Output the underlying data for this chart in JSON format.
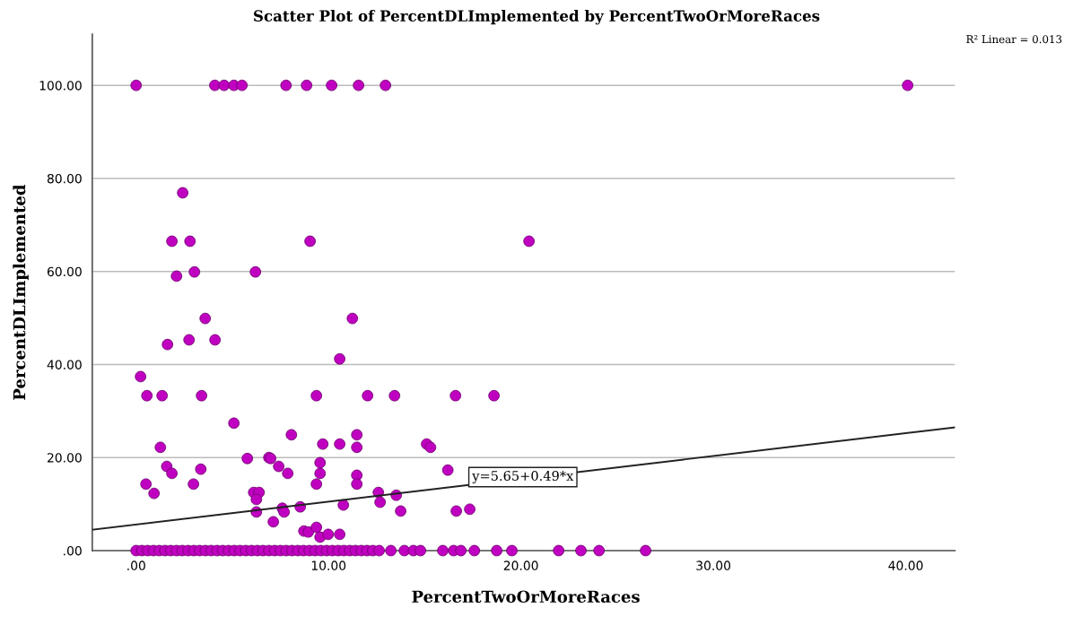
{
  "chart_data": {
    "type": "scatter",
    "title": "Scatter Plot of PercentDLImplemented by PercentTwoOrMoreRaces",
    "xlabel": "PercentTwoOrMoreRaces",
    "ylabel": "PercentDLImplemented",
    "annotations": [
      "R² Linear = 0.013",
      {
        "text": "y=5.65+0.49*x",
        "x": 20.1,
        "y": 15.8
      }
    ],
    "xlim": [
      -2.28,
      42.56
    ],
    "ylim": [
      0,
      111
    ],
    "xticks": [
      {
        "value": 0,
        "label": ".00"
      },
      {
        "value": 10,
        "label": "10.00"
      },
      {
        "value": 20,
        "label": "20.00"
      },
      {
        "value": 30,
        "label": "30.00"
      },
      {
        "value": 40,
        "label": "40.00"
      }
    ],
    "yticks": [
      {
        "value": 0,
        "label": ".00"
      },
      {
        "value": 20,
        "label": "20.00"
      },
      {
        "value": 40,
        "label": "40.00"
      },
      {
        "value": 60,
        "label": "60.00"
      },
      {
        "value": 80,
        "label": "80.00"
      },
      {
        "value": 100,
        "label": "100.00"
      }
    ],
    "grid": "y",
    "marker": "circle",
    "legend": false,
    "series": [
      {
        "color": "#c000c0",
        "x": [
          0,
          4.09,
          4.57,
          5.08,
          5.5,
          7.79,
          8.86,
          10.16,
          11.56,
          12.96,
          40.1,
          2.42,
          1.86,
          2.8,
          9.04,
          20.42,
          2.1,
          3.03,
          6.2,
          3.59,
          11.24,
          1.63,
          2.75,
          4.1,
          0.23,
          10.58,
          0.56,
          1.35,
          3.4,
          9.37,
          12.03,
          13.43,
          16.6,
          18.6,
          5.08,
          8.07,
          11.47,
          1.26,
          9.7,
          10.58,
          11.47,
          15.1,
          15.3,
          5.78,
          6.9,
          6.99,
          7.41,
          7.88,
          9.56,
          9.56,
          1.59,
          1.86,
          3.36,
          16.2,
          0.51,
          2.98,
          9.37,
          11.47,
          11.47,
          0.93,
          6.11,
          6.39,
          12.59,
          6.25,
          12.68,
          13.52,
          10.77,
          6.25,
          7.6,
          7.69,
          8.53,
          13.75,
          16.64,
          17.34,
          7.13,
          8.72,
          8.95,
          9.37,
          9.56,
          9.98,
          10.58,
          0,
          0.3,
          0.6,
          0.9,
          1.2,
          1.5,
          1.8,
          2.1,
          2.4,
          2.7,
          3.0,
          3.3,
          3.6,
          3.9,
          4.2,
          4.5,
          4.8,
          5.1,
          5.4,
          5.7,
          6.0,
          6.3,
          6.6,
          6.9,
          7.2,
          7.5,
          7.8,
          8.1,
          8.4,
          8.7,
          9.0,
          9.3,
          9.6,
          9.9,
          10.2,
          10.5,
          10.8,
          11.1,
          11.4,
          11.7,
          12.0,
          12.3,
          12.63,
          13.24,
          13.94,
          14.41,
          14.78,
          15.94,
          16.5,
          16.88,
          17.58,
          18.74,
          19.53,
          21.96,
          23.12,
          24.06,
          26.48
        ],
        "values": [
          100,
          100,
          100,
          100,
          100,
          100,
          100,
          100,
          100,
          100,
          100,
          76.9,
          66.5,
          66.5,
          66.5,
          66.5,
          59,
          59.9,
          59.9,
          49.9,
          49.9,
          44.3,
          45.3,
          45.3,
          37.4,
          41.2,
          33.3,
          33.3,
          33.3,
          33.3,
          33.3,
          33.3,
          33.3,
          33.3,
          27.4,
          24.9,
          24.9,
          22.2,
          22.9,
          22.9,
          22.2,
          22.9,
          22.2,
          19.8,
          20,
          19.8,
          18.1,
          16.6,
          18.9,
          16.6,
          18.1,
          16.6,
          17.5,
          17.3,
          14.3,
          14.3,
          14.3,
          16.2,
          14.3,
          12.3,
          12.5,
          12.5,
          12.5,
          11,
          10.4,
          11.9,
          9.8,
          8.3,
          9.1,
          8.3,
          9.4,
          8.5,
          8.5,
          8.9,
          6.2,
          4.2,
          4,
          5,
          2.9,
          3.5,
          3.5,
          0,
          0,
          0,
          0,
          0,
          0,
          0,
          0,
          0,
          0,
          0,
          0,
          0,
          0,
          0,
          0,
          0,
          0,
          0,
          0,
          0,
          0,
          0,
          0,
          0,
          0,
          0,
          0,
          0,
          0,
          0,
          0,
          0,
          0,
          0,
          0,
          0,
          0,
          0,
          0,
          0,
          0,
          0,
          0,
          0,
          0,
          0,
          0,
          0,
          0,
          0,
          0,
          0,
          0,
          0,
          0,
          0
        ]
      },
      {
        "type": "line",
        "color": "#222222",
        "marker": "none",
        "line_style": "solid",
        "x": [
          -2.28,
          42.56
        ],
        "values": [
          4.5,
          26.5
        ]
      }
    ]
  }
}
